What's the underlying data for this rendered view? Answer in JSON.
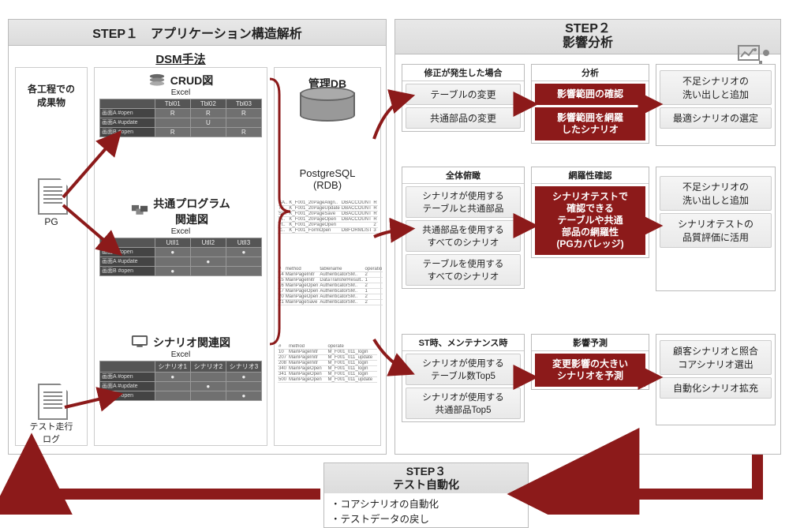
{
  "step1": {
    "title": "STEP１　アプリケーション構造解析",
    "dsm_heading": "DSM手法",
    "left_label": "各工程での\n成果物",
    "pg_label": "PG",
    "testlog_label": "テスト走行\nログ",
    "crud": {
      "title": "CRUD図",
      "sub": "Excel",
      "cols": [
        "Tbl01",
        "Tbl02",
        "Tbl03"
      ],
      "rows": [
        {
          "h": "画面A #open",
          "c": [
            "R",
            "R",
            "R"
          ]
        },
        {
          "h": "画面A #update",
          "c": [
            "",
            "U",
            ""
          ]
        },
        {
          "h": "画面B #open",
          "c": [
            "R",
            "",
            "R"
          ]
        }
      ]
    },
    "common": {
      "title": "共通プログラム\n関連図",
      "sub": "Excel",
      "cols": [
        "UtlI1",
        "UtlI2",
        "UtlI3"
      ],
      "rows": [
        {
          "h": "画面A #open",
          "c": [
            "●",
            "",
            "●"
          ]
        },
        {
          "h": "画面A #update",
          "c": [
            "",
            "●",
            ""
          ]
        },
        {
          "h": "画面B #open",
          "c": [
            "●",
            "",
            ""
          ]
        }
      ]
    },
    "scenario": {
      "title": "シナリオ関連図",
      "sub": "Excel",
      "cols": [
        "シナリオ1",
        "シナリオ2",
        "シナリオ3"
      ],
      "rows": [
        {
          "h": "画面A #open",
          "c": [
            "●",
            "",
            "●"
          ]
        },
        {
          "h": "画面A #update",
          "c": [
            "",
            "●",
            ""
          ]
        },
        {
          "h": "画面B #open",
          "c": [
            "",
            "",
            "●"
          ]
        }
      ]
    },
    "db": {
      "title": "管理DB",
      "engine": "PostgreSQL\n(RDB)",
      "lines": [
        [
          "SA..",
          "K_F001_20PageAlign..",
          "DBACCOUNT",
          "R"
        ],
        [
          "Tx..",
          "K_F001_20PageUpdate",
          "DBACCOUNT",
          "R"
        ],
        [
          "Se..",
          "K_F001_20PageSave",
          "DBACCOUNT",
          "R"
        ],
        [
          "Fl..",
          "K_F001_20PageOpen",
          "DBACCOUNT",
          "R"
        ],
        [
          "Ft..",
          "K_F001_20PageOpen",
          "",
          "2"
        ],
        [
          "Ic..",
          "K_F001_FormOpen",
          "DBFORMLIST",
          "3"
        ]
      ],
      "lines2": [
        [
          "#",
          "method",
          "tablename",
          "operatio"
        ],
        [
          "14",
          "MainPageInitr",
          "AuthenticatorSM..",
          "2"
        ],
        [
          "15",
          "MainPageInitr",
          "DataTransferResult..",
          "1"
        ],
        [
          "16",
          "MainPageOpen",
          "AuthenticatorSM..",
          "2"
        ],
        [
          "17",
          "MainPageOpen",
          "AuthenticatorSM..",
          "1"
        ],
        [
          "20",
          "MainPageOpen",
          "AuthenticatorSM..",
          "2"
        ],
        [
          "21",
          "MainPageSave",
          "AuthenticatorSM..",
          "2"
        ]
      ],
      "lines3": [
        [
          "#",
          "method",
          "",
          "operate"
        ],
        [
          "10",
          "MainPageInitr",
          "",
          "M_F001_011_login"
        ],
        [
          "207",
          "MainPageInitr",
          "",
          "M_F001_011_update"
        ],
        [
          "208",
          "MainPageInitr",
          "",
          "M_F001_011_login"
        ],
        [
          "340",
          "MainPageOpen",
          "",
          "M_F001_011_login"
        ],
        [
          "341",
          "MainPageOpen",
          "",
          "M_F001_011_login"
        ],
        [
          "500",
          "MainPageOpen",
          "",
          "M_F001_011_update"
        ]
      ]
    }
  },
  "step2": {
    "title": "STEP２\n影響分析",
    "col1": {
      "g1": {
        "h": "修正が発生した場合",
        "items": [
          "テーブルの変更",
          "共通部品の変更"
        ]
      },
      "g2": {
        "h": "全体俯瞰",
        "items": [
          "シナリオが使用する\nテーブルと共通部品",
          "共通部品を使用する\nすべてのシナリオ",
          "テーブルを使用する\nすべてのシナリオ"
        ]
      },
      "g3": {
        "h": "ST時、メンテナンス時",
        "items": [
          "シナリオが使用する\nテーブル数Top5",
          "シナリオが使用する\n共通部品Top5"
        ]
      }
    },
    "col2": {
      "g1": {
        "h": "分析",
        "items": [
          "影響範囲の確認",
          "影響範囲を網羅\nしたシナリオ"
        ]
      },
      "g2": {
        "h": "網羅性確認",
        "items": [
          "シナリオテストで\n確認できる\nテーブルや共通\n部品の網羅性\n(PGカバレッジ)"
        ]
      },
      "g3": {
        "h": "影響予測",
        "items": [
          "変更影響の大きい\nシナリオを予測"
        ]
      }
    },
    "col3": {
      "g1": {
        "items": [
          "不足シナリオの\n洗い出しと追加",
          "最適シナリオの選定"
        ]
      },
      "g2": {
        "items": [
          "不足シナリオの\n洗い出しと追加",
          "シナリオテストの\n品質評価に活用"
        ]
      },
      "g3": {
        "items": [
          "顧客シナリオと照合\nコアシナリオ選出",
          "自動化シナリオ拡充"
        ]
      }
    }
  },
  "step3": {
    "title": "STEP３\nテスト自動化",
    "body": "・コアシナリオの自動化\n・テストデータの戻し"
  }
}
